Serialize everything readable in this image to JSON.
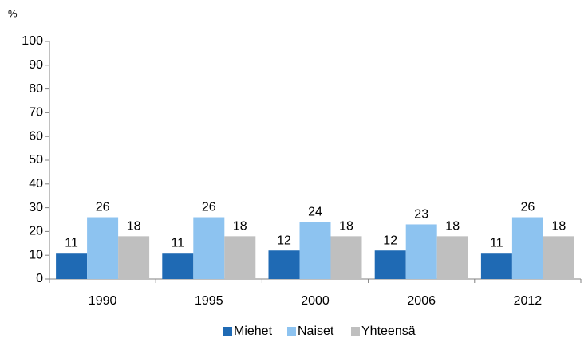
{
  "chart_data": {
    "type": "bar",
    "y_label": "%",
    "categories": [
      "1990",
      "1995",
      "2000",
      "2006",
      "2012"
    ],
    "series": [
      {
        "name": "Miehet",
        "color": "#1f6ab4",
        "values": [
          11,
          11,
          12,
          12,
          11
        ]
      },
      {
        "name": "Naiset",
        "color": "#8dc3f0",
        "values": [
          26,
          26,
          24,
          23,
          26
        ]
      },
      {
        "name": "Yhteensä",
        "color": "#bfbfbf",
        "values": [
          18,
          18,
          18,
          18,
          18
        ]
      }
    ],
    "ylim": [
      0,
      100
    ],
    "yticks": [
      0,
      10,
      20,
      30,
      40,
      50,
      60,
      70,
      80,
      90,
      100
    ],
    "grid": false,
    "legend": "bottom"
  }
}
